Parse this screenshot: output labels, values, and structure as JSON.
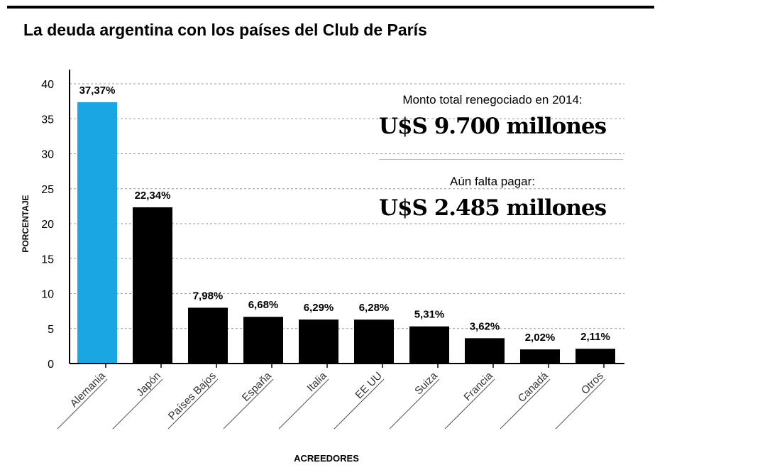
{
  "title": "La deuda argentina con los países del Club de París",
  "info": {
    "label1": "Monto total renegociado en 2014:",
    "value1": "U$S 9.700 millones",
    "label2": "Aún falta pagar:",
    "value2": "U$S 2.485 millones"
  },
  "colors": {
    "highlight": "#19a6e3",
    "bar": "#000000",
    "grid": "#9a9a9a"
  },
  "chart_data": {
    "type": "bar",
    "categories": [
      "Alemania",
      "Japón",
      "Países Bajos",
      "España",
      "Italia",
      "EE UU",
      "Suiza",
      "Francia",
      "Canadá",
      "Otros"
    ],
    "values": [
      37.37,
      22.34,
      7.98,
      6.68,
      6.29,
      6.28,
      5.31,
      3.62,
      2.02,
      2.11
    ],
    "data_labels": [
      "37,37%",
      "22,34%",
      "7,98%",
      "6,68%",
      "6,29%",
      "6,28%",
      "5,31%",
      "3,62%",
      "2,02%",
      "2,11%"
    ],
    "highlight_index": 0,
    "xlabel": "ACREEDORES",
    "ylabel": "PORCENTAJE",
    "ylim": [
      0,
      40
    ],
    "yticks": [
      0,
      5,
      10,
      15,
      20,
      25,
      30,
      35,
      40
    ],
    "grid": true
  }
}
